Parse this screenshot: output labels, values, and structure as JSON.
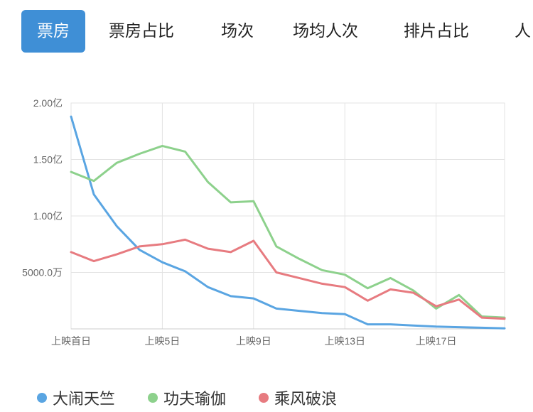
{
  "tabs": [
    {
      "label": "票房",
      "active": true
    },
    {
      "label": "票房占比",
      "active": false
    },
    {
      "label": "场次",
      "active": false
    },
    {
      "label": "场均人次",
      "active": false
    },
    {
      "label": "排片占比",
      "active": false
    },
    {
      "label": "人",
      "active": false
    }
  ],
  "colors": {
    "accent": "#3f8fd6"
  },
  "chart_data": {
    "type": "line",
    "ylim": [
      0,
      2.0
    ],
    "y_unit": "亿",
    "y_ticks": [
      {
        "value": 0.5,
        "label": "5000.0万"
      },
      {
        "value": 1.0,
        "label": "1.00亿"
      },
      {
        "value": 1.5,
        "label": "1.50亿"
      },
      {
        "value": 2.0,
        "label": "2.00亿"
      }
    ],
    "x": [
      1,
      2,
      3,
      4,
      5,
      6,
      7,
      8,
      9,
      10,
      11,
      12,
      13,
      14,
      15,
      16,
      17,
      18,
      19,
      20
    ],
    "x_ticks": [
      {
        "value": 1,
        "label": "上映首日"
      },
      {
        "value": 5,
        "label": "上映5日"
      },
      {
        "value": 9,
        "label": "上映9日"
      },
      {
        "value": 13,
        "label": "上映13日"
      },
      {
        "value": 17,
        "label": "上映17日"
      }
    ],
    "grid": true,
    "legend": "bottom",
    "series": [
      {
        "name": "大闹天竺",
        "color": "#5aa5e2",
        "values": [
          1.88,
          1.19,
          0.91,
          0.7,
          0.59,
          0.51,
          0.37,
          0.29,
          0.27,
          0.18,
          0.16,
          0.14,
          0.13,
          0.04,
          0.04,
          0.03,
          0.02,
          0.015,
          0.01,
          0.005
        ]
      },
      {
        "name": "功夫瑜伽",
        "color": "#8dd18c",
        "values": [
          1.39,
          1.31,
          1.47,
          1.55,
          1.62,
          1.57,
          1.3,
          1.12,
          1.13,
          0.73,
          0.62,
          0.52,
          0.48,
          0.36,
          0.45,
          0.34,
          0.18,
          0.3,
          0.11,
          0.1
        ]
      },
      {
        "name": "乘风破浪",
        "color": "#e77b80",
        "values": [
          0.68,
          0.6,
          0.66,
          0.73,
          0.75,
          0.79,
          0.71,
          0.68,
          0.78,
          0.5,
          0.45,
          0.4,
          0.37,
          0.25,
          0.35,
          0.32,
          0.2,
          0.26,
          0.1,
          0.09
        ]
      }
    ]
  }
}
